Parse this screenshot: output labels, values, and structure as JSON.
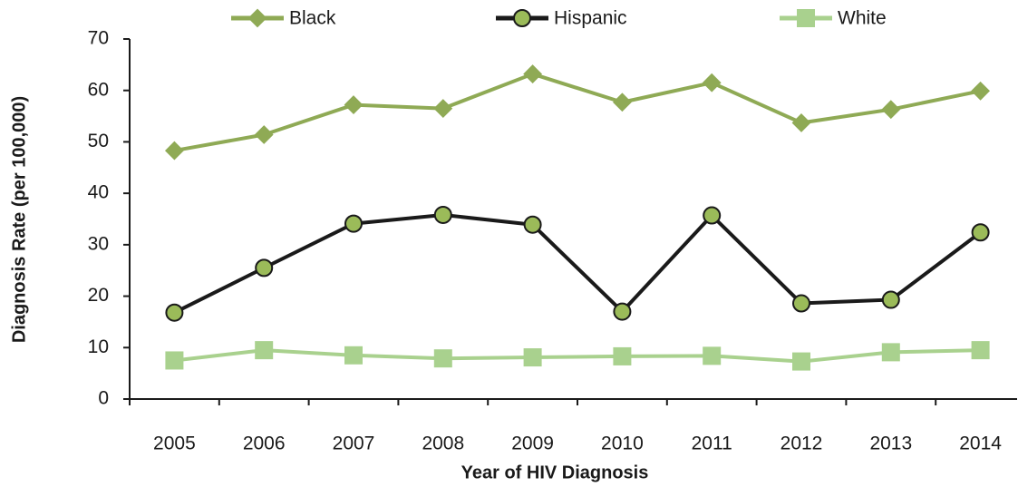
{
  "chart_data": {
    "type": "line",
    "x_label": "Year of HIV Diagnosis",
    "y_label": "Diagnosis Rate (per 100,000)",
    "categories": [
      "2005",
      "2006",
      "2007",
      "2008",
      "2009",
      "2010",
      "2011",
      "2012",
      "2013",
      "2014"
    ],
    "series": [
      {
        "name": "Black",
        "color": "#8faa55",
        "marker": "diamond",
        "marker_color": "#8faa55",
        "values": [
          48.3,
          51.4,
          57.2,
          56.5,
          63.2,
          57.7,
          61.5,
          53.7,
          56.3,
          59.9
        ]
      },
      {
        "name": "Hispanic",
        "color": "#1a1a1a",
        "marker": "circle",
        "marker_color": "#9bbb59",
        "values": [
          16.8,
          25.5,
          34.1,
          35.8,
          33.9,
          17.0,
          35.7,
          18.6,
          19.3,
          32.4
        ]
      },
      {
        "name": "White",
        "color": "#a9d18e",
        "marker": "square",
        "marker_color": "#a9d18e",
        "values": [
          7.5,
          9.5,
          8.5,
          7.9,
          8.1,
          8.3,
          8.4,
          7.3,
          9.1,
          9.5
        ]
      }
    ],
    "ylim": [
      0,
      70
    ],
    "yticks": [
      0,
      10,
      20,
      30,
      40,
      50,
      60,
      70
    ],
    "grid": false,
    "legend": "top"
  }
}
